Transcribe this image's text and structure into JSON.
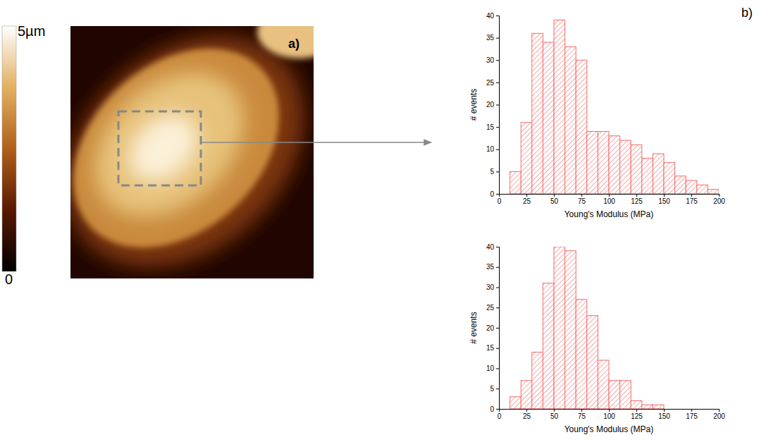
{
  "panel_labels": [
    "a)",
    "b)"
  ],
  "height_map": {
    "colorbar_range": [
      0,
      5
    ],
    "colorbar_ticks": [
      0,
      {
        "value": 5,
        "label": "5µm"
      }
    ]
  },
  "chart_data": [
    {
      "type": "histogram",
      "x_label": "Young's Modulus (MPa)",
      "y_label": "# events",
      "bins": [
        10,
        20,
        30,
        40,
        50,
        60,
        70,
        80,
        90,
        100,
        110,
        120,
        130,
        140,
        150,
        160,
        170,
        180,
        190,
        200
      ],
      "values": [
        5,
        16,
        36,
        34,
        39,
        33,
        30,
        14,
        14,
        13,
        12,
        11,
        8,
        9,
        7,
        4,
        3,
        2,
        1
      ],
      "color": "#f26b6b",
      "xlim": [
        0,
        200
      ],
      "xticks": [
        0,
        25,
        50,
        75,
        100,
        125,
        150,
        175,
        200
      ],
      "ylim": [
        0,
        40
      ],
      "yticks": [
        0,
        5,
        10,
        15,
        20,
        25,
        30,
        35,
        40
      ]
    },
    {
      "type": "histogram",
      "x_label": "Young's Modulus (MPa)",
      "y_label": "# events",
      "bins": [
        10,
        20,
        30,
        40,
        50,
        60,
        70,
        80,
        90,
        100,
        110,
        120,
        130,
        140,
        150
      ],
      "values": [
        3,
        7,
        14,
        31,
        40,
        39,
        27,
        23,
        12,
        7,
        7,
        2,
        1,
        1
      ],
      "color": "#f26b6b",
      "xlim": [
        0,
        200
      ],
      "xticks": [
        0,
        25,
        50,
        75,
        100,
        125,
        150,
        175,
        200
      ],
      "ylim": [
        0,
        40
      ],
      "yticks": [
        0,
        5,
        10,
        15,
        20,
        25,
        30,
        35,
        40
      ]
    }
  ]
}
